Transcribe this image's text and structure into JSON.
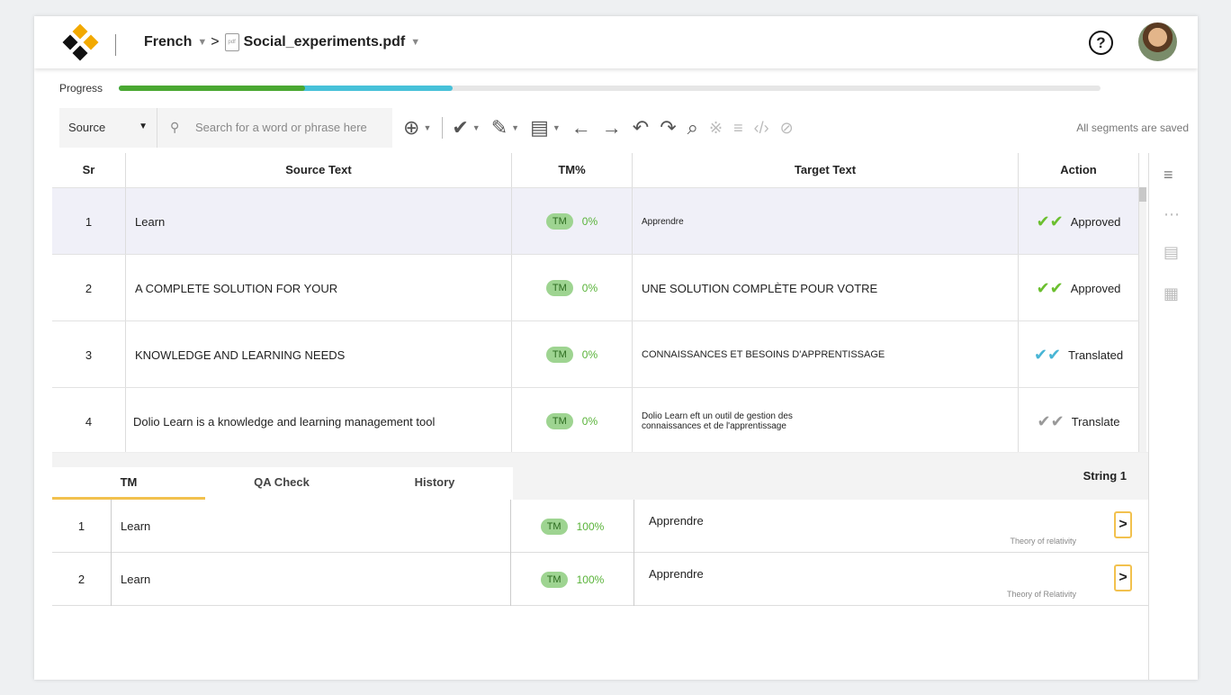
{
  "header": {
    "language": "French",
    "file_name": "Social_experiments.pdf",
    "help_symbol": "?",
    "icons": [
      "logo-icon",
      "caret-down-icon",
      "pdf-file-icon",
      "help-icon",
      "avatar"
    ]
  },
  "progress": {
    "label": "Progress",
    "approved_fraction": 0.19,
    "translated_fraction": 0.34,
    "colors": {
      "approved": "#4aa832",
      "translated": "#47c1d9",
      "track": "#e6e6e6"
    }
  },
  "toolbar": {
    "source_select": "Source",
    "search_placeholder": "Search for a word or phrase here",
    "saved_status": "All segments are saved",
    "icons": [
      "download-icon",
      "check-icon",
      "eraser-icon",
      "document-icon",
      "arrow-left-icon",
      "arrow-right-icon",
      "undo-icon",
      "redo-icon",
      "find-replace-icon",
      "special-chars-icon",
      "format-icon",
      "code-icon",
      "hide-icon"
    ]
  },
  "grid": {
    "headers": {
      "sr": "Sr",
      "source": "Source Text",
      "tm": "TM%",
      "target": "Target Text",
      "action": "Action"
    },
    "rows": [
      {
        "sr": "1",
        "source": "Learn",
        "tm_badge": "TM",
        "tm_pct": "0%",
        "target": "Apprendre",
        "status": "Approved"
      },
      {
        "sr": "2",
        "source": "A COMPLETE SOLUTION FOR YOUR",
        "tm_badge": "TM",
        "tm_pct": "0%",
        "target": "UNE SOLUTION COMPLÈTE POUR VOTRE",
        "status": "Approved"
      },
      {
        "sr": "3",
        "source": "KNOWLEDGE AND LEARNING NEEDS",
        "tm_badge": "TM",
        "tm_pct": "0%",
        "target": "CONNAISSANCES ET BESOINS D'APPRENTISSAGE",
        "status": "Translated"
      },
      {
        "sr": "4",
        "source": "Dolio  Learn is a knowledge and learning management tool",
        "tm_badge": "TM",
        "tm_pct": "0%",
        "target_line1": "Dolio Learn eft un outil de gestion des",
        "target_line2": "connaissances et de l'apprentissage",
        "status": "Translate"
      }
    ]
  },
  "rail_icons": [
    "filter-icon",
    "comment-icon",
    "notes-icon",
    "calculator-icon"
  ],
  "bottom": {
    "tabs": [
      "TM",
      "QA Check",
      "History"
    ],
    "active_tab": "TM",
    "string_label": "String 1",
    "matches": [
      {
        "sr": "1",
        "source": "Learn",
        "tm_badge": "TM",
        "tm_pct": "100%",
        "target": "Apprendre",
        "context": "Theory of relativity"
      },
      {
        "sr": "2",
        "source": "Learn",
        "tm_badge": "TM",
        "tm_pct": "100%",
        "target": "Apprendre",
        "context": "Theory of Relativity"
      }
    ]
  }
}
